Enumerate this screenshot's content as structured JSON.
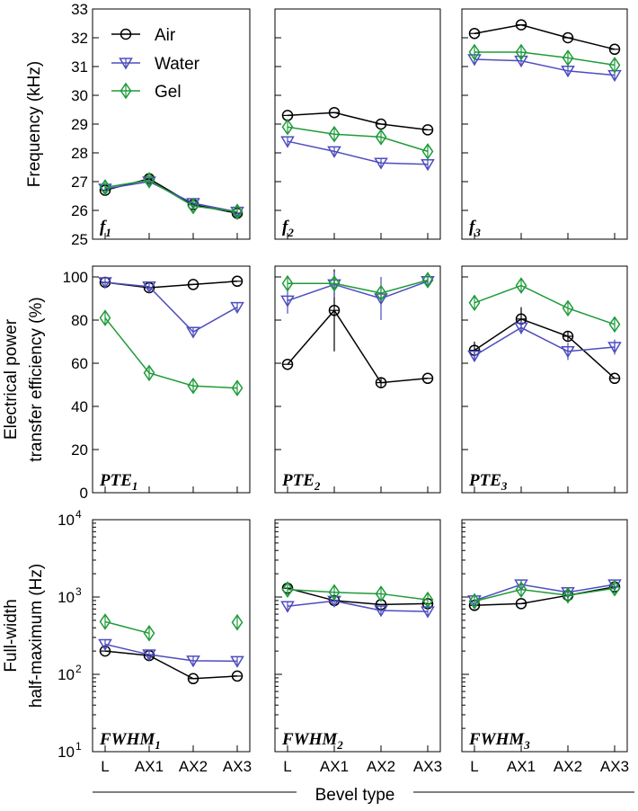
{
  "chart_data": {
    "type": "line",
    "categories": [
      "L",
      "AX1",
      "AX2",
      "AX3"
    ],
    "xlabel": "Bevel type",
    "series_names": [
      "Air",
      "Water",
      "Gel"
    ],
    "colors": {
      "Air": "#000000",
      "Water": "#4d4dbf",
      "Gel": "#1f9b3a"
    },
    "markers": {
      "Air": "circle",
      "Water": "triangle-down",
      "Gel": "diamond"
    },
    "rows": [
      {
        "ylabel_lines": [
          "Frequency (kHz)"
        ],
        "scale": "linear",
        "ylim": [
          25,
          33
        ],
        "yticks": [
          25,
          26,
          27,
          28,
          29,
          30,
          31,
          32,
          33
        ],
        "yticklabels": [
          "25",
          "26",
          "27",
          "28",
          "29",
          "30",
          "31",
          "32",
          "33"
        ],
        "panels": [
          {
            "label": "f",
            "sub": "1",
            "series": [
              {
                "name": "Air",
                "values": [
                  26.7,
                  27.1,
                  26.2,
                  25.9
                ]
              },
              {
                "name": "Water",
                "values": [
                  26.75,
                  27.0,
                  26.25,
                  25.95
                ]
              },
              {
                "name": "Gel",
                "values": [
                  26.8,
                  27.05,
                  26.15,
                  25.95
                ]
              }
            ]
          },
          {
            "label": "f",
            "sub": "2",
            "series": [
              {
                "name": "Air",
                "values": [
                  29.3,
                  29.4,
                  29.0,
                  28.8
                ]
              },
              {
                "name": "Water",
                "values": [
                  28.4,
                  28.05,
                  27.65,
                  27.6
                ]
              },
              {
                "name": "Gel",
                "values": [
                  28.9,
                  28.65,
                  28.55,
                  28.05
                ]
              }
            ]
          },
          {
            "label": "f",
            "sub": "3",
            "series": [
              {
                "name": "Air",
                "values": [
                  32.15,
                  32.45,
                  32.0,
                  31.6
                ]
              },
              {
                "name": "Water",
                "values": [
                  31.25,
                  31.2,
                  30.85,
                  30.7
                ]
              },
              {
                "name": "Gel",
                "values": [
                  31.5,
                  31.5,
                  31.3,
                  31.05
                ]
              }
            ]
          }
        ]
      },
      {
        "ylabel_lines": [
          "Electrical power",
          "transfer efficiency (%)"
        ],
        "scale": "linear",
        "ylim": [
          0,
          105
        ],
        "yticks": [
          0,
          20,
          40,
          60,
          80,
          100
        ],
        "yticklabels": [
          "0",
          "20",
          "40",
          "60",
          "80",
          "100"
        ],
        "panels": [
          {
            "label": "PTE",
            "sub": "1",
            "series": [
              {
                "name": "Air",
                "values": [
                  97.5,
                  95,
                  96.5,
                  98
                ]
              },
              {
                "name": "Water",
                "values": [
                  97.5,
                  95.5,
                  74.5,
                  86
                ]
              },
              {
                "name": "Gel",
                "values": [
                  81,
                  55.5,
                  49.5,
                  48.5
                ]
              }
            ]
          },
          {
            "label": "PTE",
            "sub": "2",
            "series": [
              {
                "name": "Air",
                "values": [
                  59.5,
                  84.5,
                  51,
                  53
                ],
                "errors": [
                  0,
                  19,
                  2.5,
                  0
                ]
              },
              {
                "name": "Water",
                "values": [
                  89,
                  96.5,
                  90,
                  98
                ],
                "errors": [
                  6,
                  6,
                  10,
                  1
                ]
              },
              {
                "name": "Gel",
                "values": [
                  97,
                  97,
                  92.5,
                  98.5
                ]
              }
            ]
          },
          {
            "label": "PTE",
            "sub": "3",
            "series": [
              {
                "name": "Air",
                "values": [
                  66,
                  80.5,
                  72.5,
                  53
                ],
                "errors": [
                  4,
                  5.5,
                  2,
                  0
                ]
              },
              {
                "name": "Water",
                "values": [
                  63.5,
                  76.5,
                  65.5,
                  67.5
                ],
                "errors": [
                  2,
                  3,
                  4,
                  3.5
                ]
              },
              {
                "name": "Gel",
                "values": [
                  88,
                  96,
                  85.5,
                  78
                ]
              }
            ]
          }
        ]
      },
      {
        "ylabel_lines": [
          "Full-width",
          "half-maximum (Hz)"
        ],
        "scale": "log",
        "ylim": [
          10,
          10000
        ],
        "yticks": [
          10,
          100,
          1000,
          10000
        ],
        "yticklabels": [
          "10",
          "10",
          "10",
          "10"
        ],
        "ytick_exponents": [
          "1",
          "2",
          "3",
          "4"
        ],
        "panels": [
          {
            "label": "FWHM",
            "sub": "1",
            "series": [
              {
                "name": "Air",
                "values": [
                  200,
                  175,
                  88,
                  95
                ]
              },
              {
                "name": "Water",
                "values": [
                  245,
                  180,
                  150,
                  148
                ]
              },
              {
                "name": "Gel",
                "values": [
                  480,
                  340,
                  null,
                  470
                ]
              }
            ]
          },
          {
            "label": "FWHM",
            "sub": "2",
            "series": [
              {
                "name": "Air",
                "values": [
                  1300,
                  900,
                  800,
                  820
                ]
              },
              {
                "name": "Water",
                "values": [
                  760,
                  890,
                  670,
                  650
                ]
              },
              {
                "name": "Gel",
                "values": [
                  1250,
                  1150,
                  1100,
                  920
                ]
              }
            ]
          },
          {
            "label": "FWHM",
            "sub": "3",
            "series": [
              {
                "name": "Air",
                "values": [
                  780,
                  820,
                  1050,
                  1350
                ]
              },
              {
                "name": "Water",
                "values": [
                  900,
                  1450,
                  1150,
                  1450
                ]
              },
              {
                "name": "Gel",
                "values": [
                  880,
                  1250,
                  1050,
                  1300
                ]
              }
            ]
          }
        ]
      }
    ],
    "legend": {
      "placement": "top-left panel, upper left",
      "entries": [
        "Air",
        "Water",
        "Gel"
      ]
    }
  }
}
